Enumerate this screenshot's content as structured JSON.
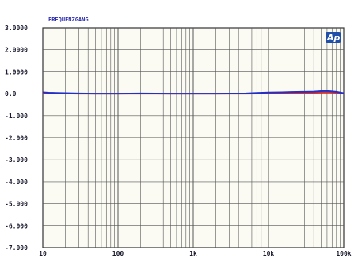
{
  "chart_data": {
    "type": "line",
    "title": "FREQUENZGANG",
    "logo_text": "Ap",
    "xlabel": "",
    "ylabel": "",
    "x_scale": "log",
    "xlim": [
      10,
      100000
    ],
    "ylim": [
      -7,
      3
    ],
    "grid": true,
    "x_ticks": [
      10,
      100,
      1000,
      10000,
      100000
    ],
    "x_tick_labels": [
      "10",
      "100",
      "1k",
      "10k",
      "100k"
    ],
    "y_ticks": [
      3,
      2,
      1,
      0,
      -1,
      -2,
      -3,
      -4,
      -5,
      -6,
      -7
    ],
    "y_tick_labels": [
      "3.0000",
      "2.0000",
      "1.0000",
      "0.0",
      "-1.000",
      "-2.000",
      "-3.000",
      "-4.000",
      "-5.000",
      "-6.000",
      "-7.000"
    ],
    "colors": {
      "background": "#ffffff",
      "plot_area": "#fbfbf3",
      "grid": "#555555",
      "axis_text": "#1a1a2e",
      "title": "#2b2bb0",
      "logo_bg": "#1f4fa8"
    },
    "series": [
      {
        "color": "#d9302a",
        "x": [
          10,
          12,
          15,
          20,
          30,
          50,
          100,
          200,
          500,
          1000,
          2000,
          5000,
          10000,
          15000,
          20000,
          30000,
          40000,
          50000,
          60000,
          70000,
          80000,
          90000,
          100000
        ],
        "y": [
          0.04,
          0.03,
          0.02,
          0.01,
          0.0,
          0.0,
          0.0,
          0.0,
          0.0,
          0.0,
          0.0,
          0.0,
          0.01,
          0.02,
          0.02,
          0.03,
          0.04,
          0.05,
          0.06,
          0.05,
          0.04,
          0.02,
          0.0
        ]
      },
      {
        "color": "#2230c8",
        "x": [
          10,
          12,
          15,
          20,
          30,
          50,
          100,
          200,
          500,
          1000,
          2000,
          5000,
          7000,
          10000,
          15000,
          20000,
          30000,
          40000,
          50000,
          60000,
          70000,
          80000,
          90000,
          100000
        ],
        "y": [
          0.06,
          0.04,
          0.03,
          0.02,
          0.01,
          0.0,
          0.0,
          0.01,
          0.0,
          0.0,
          0.0,
          0.01,
          0.03,
          0.05,
          0.06,
          0.07,
          0.08,
          0.09,
          0.11,
          0.12,
          0.1,
          0.08,
          0.05,
          0.02
        ]
      }
    ]
  }
}
